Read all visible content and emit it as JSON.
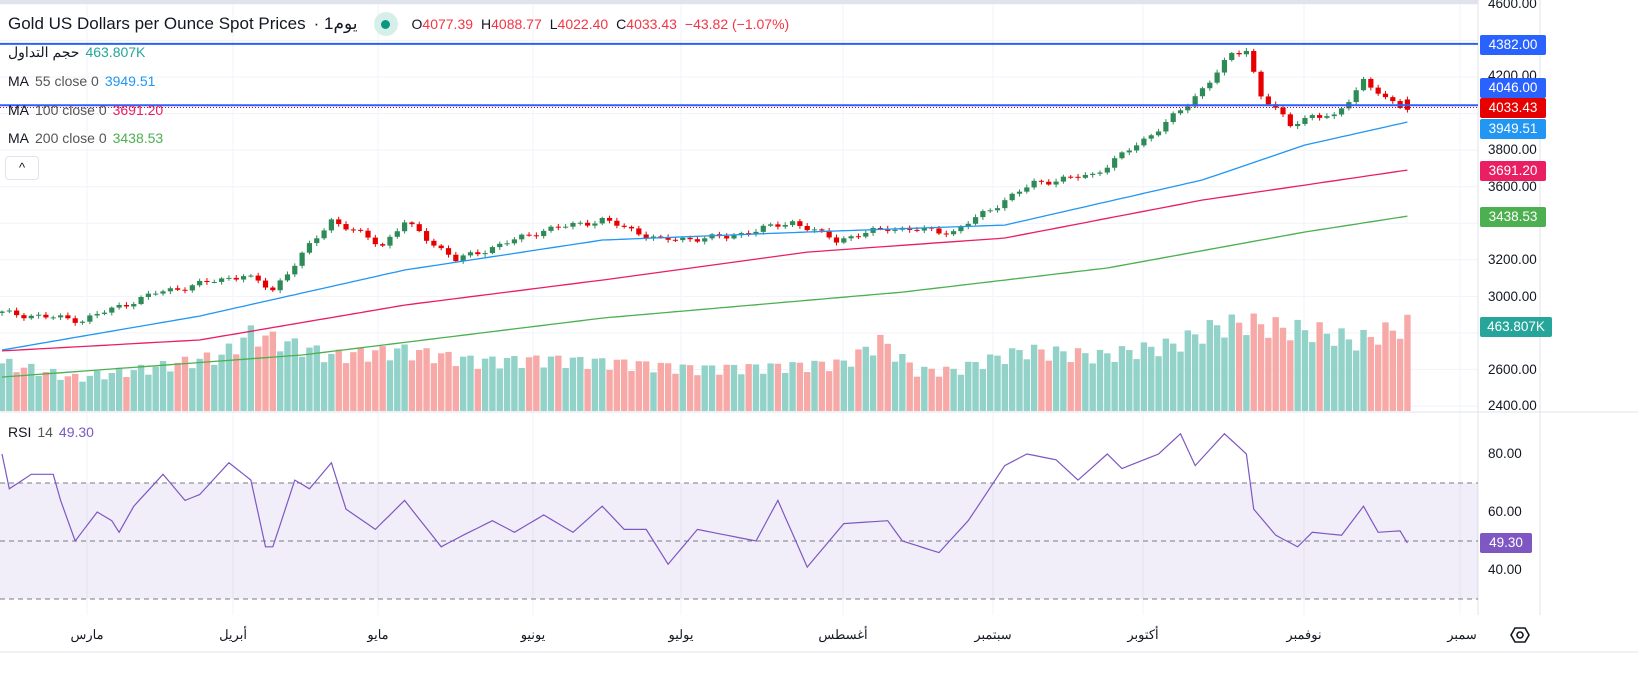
{
  "header": {
    "symbol_title": "Gold US Dollars per Ounce Spot Prices",
    "interval": "· 1يوم",
    "ohlc": {
      "o_label": "O",
      "o": "4077.39",
      "h_label": "H",
      "h": "4088.77",
      "l_label": "L",
      "l": "4022.40",
      "c_label": "C",
      "c": "4033.43",
      "change": "−43.82 (−1.07%)"
    }
  },
  "indicators": {
    "volume": {
      "label": "حجم التداول",
      "value": "463.807K"
    },
    "ma55": {
      "label": "MA",
      "params": "55 close 0",
      "value": "3949.51"
    },
    "ma100": {
      "label": "MA",
      "params": "100 close 0",
      "value": "3691.20"
    },
    "ma200": {
      "label": "MA",
      "params": "200 close 0",
      "value": "3438.53"
    },
    "collapse": "^"
  },
  "price_axis": {
    "ticks": [
      "4600.00",
      "4200.00",
      "3800.00",
      "3600.00",
      "3200.00",
      "3000.00",
      "2600.00",
      "2400.00"
    ],
    "labels": {
      "hline": "4382.00",
      "hline2": "4046.00",
      "last": "4033.43",
      "ma55": "3949.51",
      "ma100": "3691.20",
      "ma200": "3438.53",
      "volume": "463.807K"
    }
  },
  "rsi": {
    "label": "RSI",
    "params": "14",
    "value": "49.30",
    "ticks": [
      "80.00",
      "60.00",
      "40.00"
    ]
  },
  "time_axis": {
    "months": [
      "مارس",
      "أبريل",
      "مايو",
      "يونيو",
      "يوليو",
      "أغسطس",
      "سبتمبر",
      "أكتوبر",
      "نوفمبر",
      "سمبر"
    ]
  },
  "colors": {
    "up": "#2e8b57",
    "down": "#e60000",
    "vol_up": "#92d2c8",
    "vol_down": "#f7a9a7",
    "ma55": "#2196f3",
    "ma100": "#e91e63",
    "ma200": "#4caf50",
    "rsi": "#7e57c2",
    "hline": "#2962ff"
  },
  "chart_data": {
    "type": "candlestick",
    "bars": 193,
    "price_ylim": [
      2400,
      4600
    ],
    "price_anchors": [
      [
        0,
        2909
      ],
      [
        11,
        2870
      ],
      [
        21,
        3018
      ],
      [
        33,
        3117
      ],
      [
        37,
        3035
      ],
      [
        45,
        3418
      ],
      [
        52,
        3280
      ],
      [
        55,
        3407
      ],
      [
        62,
        3199
      ],
      [
        74,
        3363
      ],
      [
        82,
        3418
      ],
      [
        90,
        3308
      ],
      [
        99,
        3325
      ],
      [
        108,
        3407
      ],
      [
        114,
        3308
      ],
      [
        121,
        3374
      ],
      [
        130,
        3352
      ],
      [
        137,
        3527
      ],
      [
        141,
        3620
      ],
      [
        149,
        3664
      ],
      [
        156,
        3856
      ],
      [
        162,
        4047
      ],
      [
        168,
        4321
      ],
      [
        170,
        4348
      ],
      [
        172,
        4102
      ],
      [
        176,
        3938
      ],
      [
        179,
        3992
      ],
      [
        182,
        3976
      ],
      [
        186,
        4184
      ],
      [
        189,
        4074
      ],
      [
        192,
        4033
      ]
    ],
    "ma55": [
      [
        0,
        2706
      ],
      [
        27,
        2892
      ],
      [
        55,
        3144
      ],
      [
        82,
        3308
      ],
      [
        110,
        3352
      ],
      [
        137,
        3390
      ],
      [
        164,
        3637
      ],
      [
        178,
        3828
      ],
      [
        192,
        3954
      ]
    ],
    "ma100": [
      [
        0,
        2701
      ],
      [
        27,
        2761
      ],
      [
        55,
        2952
      ],
      [
        82,
        3089
      ],
      [
        110,
        3242
      ],
      [
        137,
        3319
      ],
      [
        164,
        3527
      ],
      [
        192,
        3691
      ]
    ],
    "ma200": [
      [
        0,
        2558
      ],
      [
        41,
        2679
      ],
      [
        82,
        2881
      ],
      [
        123,
        3023
      ],
      [
        151,
        3155
      ],
      [
        178,
        3352
      ],
      [
        192,
        3439
      ]
    ],
    "volume_k": [
      [
        0,
        260
      ],
      [
        10,
        180
      ],
      [
        20,
        230
      ],
      [
        30,
        300
      ],
      [
        34,
        420
      ],
      [
        38,
        380
      ],
      [
        45,
        300
      ],
      [
        55,
        330
      ],
      [
        65,
        270
      ],
      [
        75,
        280
      ],
      [
        85,
        260
      ],
      [
        95,
        230
      ],
      [
        105,
        240
      ],
      [
        115,
        260
      ],
      [
        120,
        380
      ],
      [
        125,
        220
      ],
      [
        130,
        220
      ],
      [
        135,
        280
      ],
      [
        140,
        330
      ],
      [
        150,
        300
      ],
      [
        160,
        360
      ],
      [
        166,
        460
      ],
      [
        170,
        480
      ],
      [
        175,
        450
      ],
      [
        180,
        430
      ],
      [
        185,
        380
      ],
      [
        192,
        464
      ]
    ],
    "rsi_anchors": [
      [
        0,
        80
      ],
      [
        1,
        68
      ],
      [
        4,
        73
      ],
      [
        7,
        73
      ],
      [
        8,
        64
      ],
      [
        10,
        50
      ],
      [
        13,
        60
      ],
      [
        15,
        57
      ],
      [
        16,
        53
      ],
      [
        18,
        62
      ],
      [
        22,
        73
      ],
      [
        25,
        64
      ],
      [
        27,
        66
      ],
      [
        31,
        77
      ],
      [
        34,
        71
      ],
      [
        36,
        48
      ],
      [
        37,
        48
      ],
      [
        40,
        71
      ],
      [
        42,
        68
      ],
      [
        45,
        77
      ],
      [
        47,
        61
      ],
      [
        51,
        54
      ],
      [
        55,
        64
      ],
      [
        60,
        48
      ],
      [
        63,
        52
      ],
      [
        67,
        57
      ],
      [
        70,
        53
      ],
      [
        74,
        59
      ],
      [
        78,
        53
      ],
      [
        82,
        62
      ],
      [
        85,
        54
      ],
      [
        88,
        54
      ],
      [
        91,
        42
      ],
      [
        95,
        54
      ],
      [
        99,
        52
      ],
      [
        103,
        50
      ],
      [
        106,
        64
      ],
      [
        110,
        41
      ],
      [
        115,
        56
      ],
      [
        121,
        57
      ],
      [
        123,
        50
      ],
      [
        128,
        46
      ],
      [
        132,
        57
      ],
      [
        137,
        76
      ],
      [
        140,
        80
      ],
      [
        144,
        78
      ],
      [
        147,
        71
      ],
      [
        151,
        80
      ],
      [
        153,
        75
      ],
      [
        158,
        80
      ],
      [
        161,
        87
      ],
      [
        163,
        76
      ],
      [
        167,
        87
      ],
      [
        170,
        80
      ],
      [
        171,
        61
      ],
      [
        174,
        52
      ],
      [
        177,
        48
      ],
      [
        179,
        53
      ],
      [
        183,
        52
      ],
      [
        186,
        62
      ],
      [
        188,
        53
      ],
      [
        191,
        53.5
      ],
      [
        192,
        49.3
      ]
    ],
    "rsi_levels": [
      70,
      50,
      30
    ],
    "rsi_ylim": [
      25,
      95
    ]
  }
}
